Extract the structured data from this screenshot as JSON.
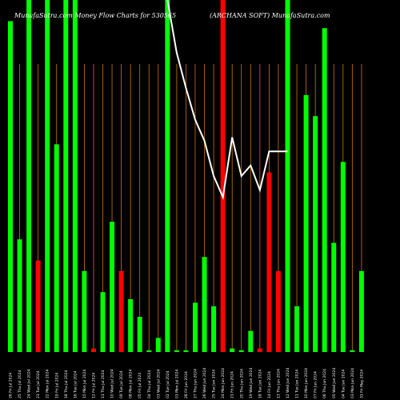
{
  "chart_data": {
    "type": "bar",
    "title_left": "MunafaSutra.com  Money Flow  Charts for 530565",
    "title_right": "(ARCHANA SOFT) MunafaSutra.com",
    "colors": {
      "up": "#00ff00",
      "down": "#ff0000",
      "grid": "#cc7700",
      "line": "#ffffff",
      "background": "#000000"
    },
    "ylim": [
      0,
      100
    ],
    "categories": [
      "26 Fri Jul 2024",
      "25 Thu Jul 2024",
      "24 Wed Jul 2024",
      "23 Tue Jul 2024",
      "22 Mon Jul 2024",
      "19 Fri Jul 2024",
      "18 Thu Jul 2024",
      "16 Tue Jul 2024",
      "15 Mon Jul 2024",
      "12 Fri Jul 2024",
      "11 Thu Jul 2024",
      "10 Wed Jul 2024",
      "09 Tue Jul 2024",
      "08 Mon Jul 2024",
      "05 Fri Jul 2024",
      "04 Thu Jul 2024",
      "03 Wed Jul 2024",
      "02 Tue Jul 2024",
      "01 Mon Jul 2024",
      "28 Fri Jun 2024",
      "27 Thu Jun 2024",
      "26 Wed Jun 2024",
      "25 Tue Jun 2024",
      "24 Mon Jun 2024",
      "21 Fri Jun 2024",
      "20 Thu Jun 2024",
      "19 Wed Jun 2024",
      "18 Tue Jun 2024",
      "14 Fri Jun 2024",
      "13 Thu Jun 2024",
      "12 Wed Jun 2024",
      "11 Tue Jun 2024",
      "10 Mon Jun 2024",
      "07 Fri Jun 2024",
      "06 Thu Jun 2024",
      "05 Wed Jun 2024",
      "04 Tue Jun 2024",
      "03 Mon Jun 2024",
      "31 Fri May 2024"
    ],
    "values": [
      94,
      32,
      100,
      26,
      100,
      59,
      100,
      100,
      23,
      1,
      17,
      37,
      23,
      15,
      10,
      0.5,
      4,
      100,
      0.5,
      0.5,
      14,
      27,
      13,
      100,
      1,
      0.5,
      6,
      1,
      51,
      23,
      100,
      13,
      73,
      67,
      92,
      31,
      54,
      0.5,
      23
    ],
    "directions": [
      "up",
      "up",
      "up",
      "down",
      "up",
      "up",
      "up",
      "up",
      "up",
      "down",
      "up",
      "up",
      "down",
      "up",
      "up",
      "up",
      "up",
      "up",
      "up",
      "up",
      "up",
      "up",
      "up",
      "down",
      "up",
      "up",
      "up",
      "down",
      "down",
      "down",
      "up",
      "up",
      "up",
      "up",
      "up",
      "up",
      "up",
      "up",
      "up"
    ],
    "line": {
      "x_start": 17,
      "values": [
        100,
        85,
        75,
        66,
        60,
        50,
        44,
        61,
        50,
        53,
        46,
        57,
        57,
        57
      ]
    }
  }
}
